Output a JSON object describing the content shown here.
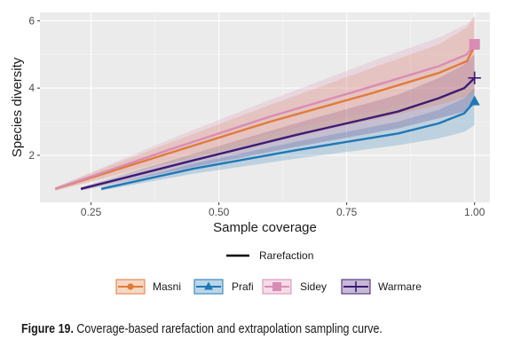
{
  "caption": {
    "label": "Figure 19.",
    "text": " Coverage-based rarefaction and extrapolation sampling curve."
  },
  "chart_data": {
    "type": "line",
    "xlabel": "Sample coverage",
    "ylabel": "Species diversity",
    "xlim": [
      0.15,
      1.03
    ],
    "ylim": [
      0.6,
      6.25
    ],
    "x_ticks": [
      0.25,
      0.5,
      0.75,
      1.0
    ],
    "x_tick_labels": [
      "0.25",
      "0.50",
      "0.75",
      "1.00"
    ],
    "y_ticks": [
      2,
      4,
      6
    ],
    "y_tick_labels": [
      "2",
      "4",
      "6"
    ],
    "grid": true,
    "legend_position": "bottom",
    "line_legend": {
      "label": "Rarefaction",
      "color": "#000000"
    },
    "series": [
      {
        "name": "Masni",
        "color": "#e07b39",
        "marker": "circle",
        "x": [
          0.18,
          0.4,
          0.6,
          0.8,
          0.93,
          0.985,
          1.0
        ],
        "y": [
          1.0,
          2.05,
          3.0,
          3.85,
          4.45,
          4.8,
          5.25
        ],
        "ci_lower": [
          0.95,
          1.75,
          2.45,
          3.05,
          3.5,
          3.75,
          3.9
        ],
        "ci_upper": [
          1.05,
          2.35,
          3.5,
          4.6,
          5.3,
          5.8,
          6.1
        ],
        "end": [
          1.0,
          5.3
        ]
      },
      {
        "name": "Prafi",
        "color": "#1f78b4",
        "marker": "triangle",
        "x": [
          0.27,
          0.45,
          0.65,
          0.85,
          0.93,
          0.98,
          1.0
        ],
        "y": [
          1.0,
          1.6,
          2.15,
          2.65,
          2.95,
          3.25,
          3.6
        ],
        "ci_lower": [
          0.95,
          1.45,
          1.9,
          2.3,
          2.5,
          2.7,
          2.9
        ],
        "ci_upper": [
          1.05,
          1.75,
          2.4,
          3.0,
          3.35,
          3.7,
          4.0
        ],
        "end": [
          1.0,
          3.6
        ]
      },
      {
        "name": "Sidey",
        "color": "#d98cb3",
        "marker": "square",
        "x": [
          0.18,
          0.4,
          0.6,
          0.8,
          0.93,
          0.985,
          1.0
        ],
        "y": [
          1.0,
          2.15,
          3.15,
          4.05,
          4.65,
          5.0,
          5.3
        ],
        "ci_lower": [
          0.95,
          1.85,
          2.65,
          3.3,
          3.75,
          4.0,
          4.2
        ],
        "ci_upper": [
          1.05,
          2.45,
          3.65,
          4.8,
          5.5,
          5.9,
          6.15
        ],
        "end": [
          1.0,
          5.3
        ]
      },
      {
        "name": "Warmare",
        "color": "#3f1a73",
        "marker": "plus",
        "x": [
          0.23,
          0.45,
          0.65,
          0.85,
          0.93,
          0.98,
          1.0
        ],
        "y": [
          1.0,
          1.85,
          2.6,
          3.3,
          3.7,
          4.0,
          4.3
        ],
        "ci_lower": [
          0.95,
          1.65,
          2.25,
          2.8,
          3.1,
          3.3,
          3.5
        ],
        "ci_upper": [
          1.05,
          2.05,
          2.95,
          3.8,
          4.3,
          4.7,
          5.0
        ],
        "end": [
          1.0,
          4.3
        ]
      }
    ]
  }
}
